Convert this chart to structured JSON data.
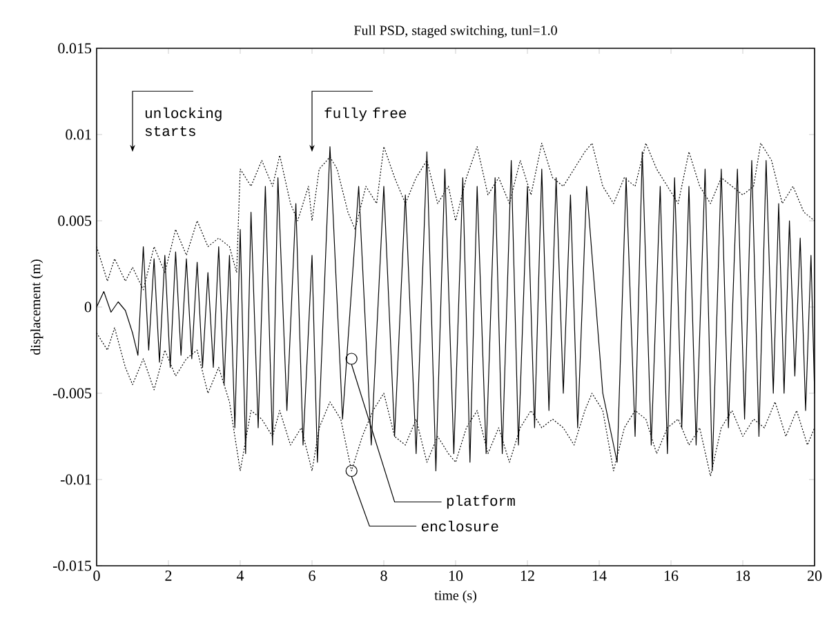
{
  "chart_data": {
    "type": "line",
    "title": "Full PSD, staged switching, tunl=1.0",
    "xlabel": "time (s)",
    "ylabel": "displacement (m)",
    "xlim": [
      0,
      20
    ],
    "xticks": [
      0,
      2,
      4,
      6,
      8,
      10,
      12,
      14,
      16,
      18,
      20
    ],
    "ylim": [
      -0.015,
      0.015
    ],
    "yticks": [
      -0.015,
      -0.01,
      -0.005,
      0,
      0.005,
      0.01,
      0.015
    ],
    "grid": false,
    "marker": "none",
    "series": [
      {
        "color": "#000000",
        "line_style": "solid",
        "x": [
          0,
          0.2,
          0.4,
          0.6,
          0.8,
          1.0,
          1.15,
          1.3,
          1.45,
          1.6,
          1.75,
          1.9,
          2.05,
          2.2,
          2.35,
          2.5,
          2.65,
          2.8,
          2.95,
          3.1,
          3.25,
          3.4,
          3.55,
          3.7,
          3.85,
          4.0,
          4.15,
          4.3,
          4.5,
          4.7,
          4.9,
          5.05,
          5.3,
          5.55,
          5.75,
          6.0,
          6.15,
          6.5,
          6.85,
          7.3,
          7.65,
          8.0,
          8.3,
          8.6,
          8.9,
          9.2,
          9.45,
          9.7,
          9.95,
          10.2,
          10.4,
          10.6,
          10.85,
          11.1,
          11.3,
          11.55,
          11.75,
          12.0,
          12.2,
          12.4,
          12.6,
          12.8,
          13.0,
          13.2,
          13.4,
          13.65,
          14.1,
          14.5,
          14.75,
          15.0,
          15.2,
          15.45,
          15.7,
          15.9,
          16.1,
          16.3,
          16.5,
          16.7,
          16.95,
          17.15,
          17.4,
          17.6,
          17.85,
          18.05,
          18.25,
          18.45,
          18.65,
          18.85,
          19.0,
          19.15,
          19.3,
          19.45,
          19.6,
          19.75,
          19.9,
          20
        ],
        "values": [
          0,
          0.0009,
          -0.0003,
          0.0003,
          -0.0002,
          -0.0015,
          -0.0028,
          0.0035,
          -0.0025,
          0.0028,
          -0.0032,
          0.003,
          -0.0035,
          0.0032,
          -0.0028,
          0.0028,
          -0.003,
          0.0026,
          -0.0035,
          0.002,
          -0.0035,
          0.0035,
          -0.0045,
          0.003,
          -0.007,
          0.0045,
          -0.0085,
          0.0055,
          -0.007,
          0.007,
          -0.008,
          0.0075,
          -0.006,
          0.006,
          -0.008,
          0.003,
          -0.009,
          0.0093,
          -0.0065,
          0.007,
          -0.008,
          0.007,
          -0.0075,
          0.0065,
          -0.0085,
          0.009,
          -0.0095,
          0.008,
          -0.0085,
          0.0075,
          -0.009,
          0.007,
          -0.0085,
          0.0075,
          -0.0085,
          0.0085,
          -0.008,
          0.007,
          -0.007,
          0.008,
          -0.006,
          0.0075,
          -0.005,
          0.0065,
          -0.007,
          0.007,
          -0.005,
          -0.009,
          0.0075,
          -0.0075,
          0.009,
          -0.008,
          0.007,
          -0.0085,
          0.0075,
          -0.007,
          0.007,
          -0.008,
          0.008,
          -0.0095,
          0.008,
          -0.007,
          0.008,
          -0.0065,
          0.0085,
          -0.0075,
          0.0085,
          -0.005,
          0.006,
          -0.005,
          0.005,
          -0.004,
          0.004,
          -0.006,
          0.003,
          -0.005
        ]
      },
      {
        "color": "#000000",
        "line_style": "dotted",
        "x": [
          0,
          0.3,
          0.5,
          0.8,
          1.0,
          1.3,
          1.6,
          1.9,
          2.2,
          2.5,
          2.8,
          3.1,
          3.4,
          3.7,
          3.9,
          4.0,
          4.3,
          4.6,
          4.9,
          5.1,
          5.4,
          5.6,
          5.9,
          6.0,
          6.2,
          6.5,
          6.7,
          7.0,
          7.2,
          7.5,
          7.8,
          8.0,
          8.3,
          8.6,
          8.9,
          9.2,
          9.5,
          9.8,
          10.0,
          10.3,
          10.6,
          10.9,
          11.2,
          11.5,
          11.8,
          12.1,
          12.4,
          12.7,
          13.0,
          13.3,
          13.6,
          13.8,
          14.1,
          14.4,
          14.7,
          15.0,
          15.3,
          15.6,
          15.9,
          16.2,
          16.5,
          16.8,
          17.1,
          17.4,
          17.7,
          18.0,
          18.3,
          18.5,
          18.8,
          19.1,
          19.4,
          19.7,
          20
        ],
        "values": [
          0.0035,
          0.0015,
          0.0028,
          0.0015,
          0.0023,
          0.001,
          0.0035,
          0.002,
          0.0045,
          0.003,
          0.005,
          0.0035,
          0.004,
          0.0035,
          0.002,
          0.008,
          0.007,
          0.0085,
          0.007,
          0.0088,
          0.006,
          0.005,
          0.007,
          0.005,
          0.008,
          0.0087,
          0.008,
          0.0055,
          0.0045,
          0.007,
          0.006,
          0.0093,
          0.0075,
          0.006,
          0.0075,
          0.0085,
          0.006,
          0.007,
          0.005,
          0.0075,
          0.0093,
          0.0065,
          0.0075,
          0.006,
          0.0085,
          0.0065,
          0.0095,
          0.0075,
          0.007,
          0.008,
          0.009,
          0.0095,
          0.007,
          0.006,
          0.0075,
          0.007,
          0.0095,
          0.008,
          0.007,
          0.006,
          0.009,
          0.007,
          0.006,
          0.0075,
          0.007,
          0.0065,
          0.007,
          0.0095,
          0.0085,
          0.006,
          0.007,
          0.0055,
          0.005
        ]
      },
      {
        "color": "#000000",
        "line_style": "dotted",
        "x": [
          0,
          0.3,
          0.5,
          0.8,
          1.0,
          1.3,
          1.6,
          1.9,
          2.2,
          2.5,
          2.8,
          3.1,
          3.4,
          3.7,
          4.0,
          4.3,
          4.6,
          4.9,
          5.1,
          5.4,
          5.7,
          6.0,
          6.2,
          6.5,
          6.8,
          7.1,
          7.4,
          7.7,
          8.0,
          8.3,
          8.6,
          8.9,
          9.2,
          9.5,
          9.8,
          10.0,
          10.3,
          10.6,
          10.9,
          11.2,
          11.5,
          11.8,
          12.1,
          12.4,
          12.7,
          13.0,
          13.3,
          13.6,
          13.8,
          14.1,
          14.4,
          14.7,
          15.0,
          15.3,
          15.6,
          15.9,
          16.2,
          16.5,
          16.8,
          17.1,
          17.4,
          17.7,
          18.0,
          18.3,
          18.6,
          18.9,
          19.2,
          19.5,
          19.8,
          20
        ],
        "values": [
          -0.0015,
          -0.0025,
          -0.0012,
          -0.0035,
          -0.0045,
          -0.003,
          -0.0048,
          -0.0025,
          -0.004,
          -0.003,
          -0.0025,
          -0.005,
          -0.0035,
          -0.0055,
          -0.0095,
          -0.006,
          -0.0065,
          -0.0075,
          -0.006,
          -0.008,
          -0.007,
          -0.0095,
          -0.007,
          -0.0055,
          -0.0065,
          -0.0095,
          -0.0075,
          -0.006,
          -0.005,
          -0.0075,
          -0.008,
          -0.0065,
          -0.009,
          -0.0075,
          -0.0085,
          -0.009,
          -0.007,
          -0.006,
          -0.0085,
          -0.007,
          -0.009,
          -0.007,
          -0.006,
          -0.007,
          -0.0065,
          -0.007,
          -0.008,
          -0.006,
          -0.005,
          -0.006,
          -0.0095,
          -0.007,
          -0.006,
          -0.0065,
          -0.0085,
          -0.007,
          -0.0065,
          -0.008,
          -0.007,
          -0.0098,
          -0.007,
          -0.006,
          -0.0075,
          -0.0065,
          -0.007,
          -0.0055,
          -0.0075,
          -0.006,
          -0.008,
          -0.007
        ]
      }
    ],
    "annotations": [
      "unlocking starts",
      "fully free",
      {
        "text": "platform",
        "x": 7.1,
        "y": -0.003
      },
      {
        "text": "enclosure",
        "x": 7.1,
        "y": -0.0095
      }
    ]
  }
}
